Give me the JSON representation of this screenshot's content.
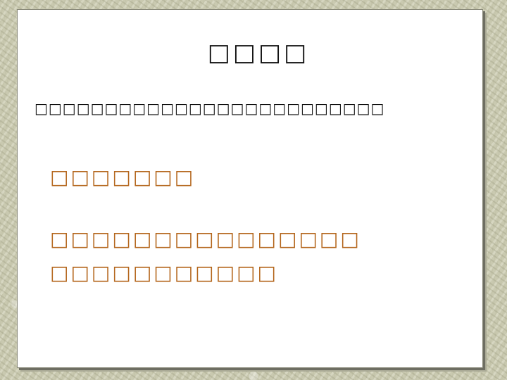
{
  "slide": {
    "title": "□□□□",
    "intro": "□□□□□□□□□□□□□□□□□□□□□□□□□",
    "answers": [
      "□□□□□□□",
      "□□□□□□□□□□□□□□□",
      "□□□□□□□□□□□"
    ]
  },
  "colors": {
    "title_text": "#111111",
    "answer_text": "#b4661c",
    "slide_background": "#ffffff",
    "page_background": "#c9c9b0"
  }
}
